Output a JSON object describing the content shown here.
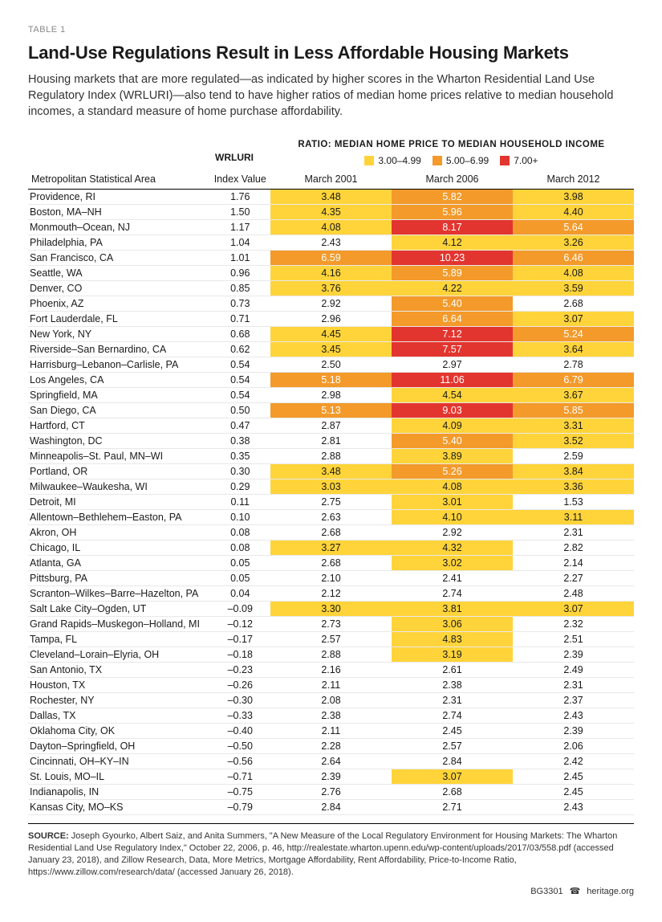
{
  "colors": {
    "low": "#ffd43a",
    "mid": "#f39a2b",
    "high": "#e3352f",
    "none": "#ffffff",
    "text_on_mid": "#ffffff",
    "text_on_high": "#ffffff"
  },
  "header": {
    "table_label": "TABLE 1",
    "title": "Land-Use Regulations Result in Less Affordable Housing Markets",
    "subtitle": "Housing markets that are more regulated—as indicated by higher scores in the Wharton Residential Land Use Regulatory Index (WRLURI)—also tend to have higher ratios of median home prices relative to median household incomes, a standard measure of home purchase affordability.",
    "ratio_label": "RATIO: MEDIAN HOME PRICE TO MEDIAN HOUSEHOLD INCOME",
    "wrluri_label": "WRLURI",
    "legend": [
      {
        "color_key": "low",
        "label": "3.00–4.99"
      },
      {
        "color_key": "mid",
        "label": "5.00–6.99"
      },
      {
        "color_key": "high",
        "label": "7.00+"
      }
    ],
    "columns": {
      "area": "Metropolitan Statistical Area",
      "index": "Index Value",
      "y1": "March 2001",
      "y2": "March 2006",
      "y3": "March 2012"
    }
  },
  "thresholds": {
    "low": 3.0,
    "mid": 5.0,
    "high": 7.0
  },
  "rows": [
    {
      "area": "Providence, RI",
      "idx": "1.76",
      "v": [
        3.48,
        5.82,
        3.98
      ]
    },
    {
      "area": "Boston, MA–NH",
      "idx": "1.50",
      "v": [
        4.35,
        5.96,
        4.4
      ]
    },
    {
      "area": "Monmouth–Ocean, NJ",
      "idx": "1.17",
      "v": [
        4.08,
        8.17,
        5.64
      ]
    },
    {
      "area": "Philadelphia, PA",
      "idx": "1.04",
      "v": [
        2.43,
        4.12,
        3.26
      ]
    },
    {
      "area": "San Francisco, CA",
      "idx": "1.01",
      "v": [
        6.59,
        10.23,
        6.46
      ]
    },
    {
      "area": "Seattle, WA",
      "idx": "0.96",
      "v": [
        4.16,
        5.89,
        4.08
      ]
    },
    {
      "area": "Denver, CO",
      "idx": "0.85",
      "v": [
        3.76,
        4.22,
        3.59
      ]
    },
    {
      "area": "Phoenix, AZ",
      "idx": "0.73",
      "v": [
        2.92,
        5.4,
        2.68
      ]
    },
    {
      "area": "Fort Lauderdale, FL",
      "idx": "0.71",
      "v": [
        2.96,
        6.64,
        3.07
      ]
    },
    {
      "area": "New York, NY",
      "idx": "0.68",
      "v": [
        4.45,
        7.12,
        5.24
      ]
    },
    {
      "area": "Riverside–San Bernardino, CA",
      "idx": "0.62",
      "v": [
        3.45,
        7.57,
        3.64
      ]
    },
    {
      "area": "Harrisburg–Lebanon–Carlisle, PA",
      "idx": "0.54",
      "v": [
        2.5,
        2.97,
        2.78
      ]
    },
    {
      "area": "Los Angeles, CA",
      "idx": "0.54",
      "v": [
        5.18,
        11.06,
        6.79
      ]
    },
    {
      "area": "Springfield, MA",
      "idx": "0.54",
      "v": [
        2.98,
        4.54,
        3.67
      ]
    },
    {
      "area": "San Diego, CA",
      "idx": "0.50",
      "v": [
        5.13,
        9.03,
        5.85
      ]
    },
    {
      "area": "Hartford, CT",
      "idx": "0.47",
      "v": [
        2.87,
        4.09,
        3.31
      ]
    },
    {
      "area": "Washington, DC",
      "idx": "0.38",
      "v": [
        2.81,
        5.4,
        3.52
      ]
    },
    {
      "area": "Minneapolis–St. Paul, MN–WI",
      "idx": "0.35",
      "v": [
        2.88,
        3.89,
        2.59
      ]
    },
    {
      "area": "Portland, OR",
      "idx": "0.30",
      "v": [
        3.48,
        5.26,
        3.84
      ]
    },
    {
      "area": "Milwaukee–Waukesha, WI",
      "idx": "0.29",
      "v": [
        3.03,
        4.08,
        3.36
      ]
    },
    {
      "area": "Detroit, MI",
      "idx": "0.11",
      "v": [
        2.75,
        3.01,
        1.53
      ]
    },
    {
      "area": "Allentown–Bethlehem–Easton, PA",
      "idx": "0.10",
      "v": [
        2.63,
        4.1,
        3.11
      ]
    },
    {
      "area": "Akron, OH",
      "idx": "0.08",
      "v": [
        2.68,
        2.92,
        2.31
      ]
    },
    {
      "area": "Chicago, IL",
      "idx": "0.08",
      "v": [
        3.27,
        4.32,
        2.82
      ]
    },
    {
      "area": "Atlanta, GA",
      "idx": "0.05",
      "v": [
        2.68,
        3.02,
        2.14
      ]
    },
    {
      "area": "Pittsburg, PA",
      "idx": "0.05",
      "v": [
        2.1,
        2.41,
        2.27
      ]
    },
    {
      "area": "Scranton–Wilkes–Barre–Hazelton, PA",
      "idx": "0.04",
      "v": [
        2.12,
        2.74,
        2.48
      ]
    },
    {
      "area": "Salt Lake City–Ogden, UT",
      "idx": "–0.09",
      "v": [
        3.3,
        3.81,
        3.07
      ]
    },
    {
      "area": "Grand Rapids–Muskegon–Holland, MI",
      "idx": "–0.12",
      "v": [
        2.73,
        3.06,
        2.32
      ]
    },
    {
      "area": "Tampa, FL",
      "idx": "–0.17",
      "v": [
        2.57,
        4.83,
        2.51
      ]
    },
    {
      "area": "Cleveland–Lorain–Elyria, OH",
      "idx": "–0.18",
      "v": [
        2.88,
        3.19,
        2.39
      ]
    },
    {
      "area": "San Antonio, TX",
      "idx": "–0.23",
      "v": [
        2.16,
        2.61,
        2.49
      ]
    },
    {
      "area": "Houston, TX",
      "idx": "–0.26",
      "v": [
        2.11,
        2.38,
        2.31
      ]
    },
    {
      "area": "Rochester, NY",
      "idx": "–0.30",
      "v": [
        2.08,
        2.31,
        2.37
      ]
    },
    {
      "area": "Dallas, TX",
      "idx": "–0.33",
      "v": [
        2.38,
        2.74,
        2.43
      ]
    },
    {
      "area": "Oklahoma City, OK",
      "idx": "–0.40",
      "v": [
        2.11,
        2.45,
        2.39
      ]
    },
    {
      "area": "Dayton–Springfield, OH",
      "idx": "–0.50",
      "v": [
        2.28,
        2.57,
        2.06
      ]
    },
    {
      "area": "Cincinnati, OH–KY–IN",
      "idx": "–0.56",
      "v": [
        2.64,
        2.84,
        2.42
      ]
    },
    {
      "area": "St. Louis, MO–IL",
      "idx": "–0.71",
      "v": [
        2.39,
        3.07,
        2.45
      ]
    },
    {
      "area": "Indianapolis, IN",
      "idx": "–0.75",
      "v": [
        2.76,
        2.68,
        2.45
      ]
    },
    {
      "area": "Kansas City, MO–KS",
      "idx": "–0.79",
      "v": [
        2.84,
        2.71,
        2.43
      ]
    }
  ],
  "source": {
    "label": "SOURCE:",
    "text": " Joseph Gyourko, Albert Saiz, and Anita Summers, \"A New Measure of the Local Regulatory Environment for Housing Markets: The Wharton Residential Land Use Regulatory Index,\" October 22, 2006, p. 46, http://realestate.wharton.upenn.edu/wp-content/uploads/2017/03/558.pdf (accessed January 23, 2018), and Zillow Research, Data, More Metrics, Mortgage Affordability, Rent Affordability, Price-to-Income Ratio, https://www.zillow.com/research/data/ (accessed January 26, 2018)."
  },
  "footer": {
    "id": "BG3301",
    "site": "heritage.org"
  }
}
